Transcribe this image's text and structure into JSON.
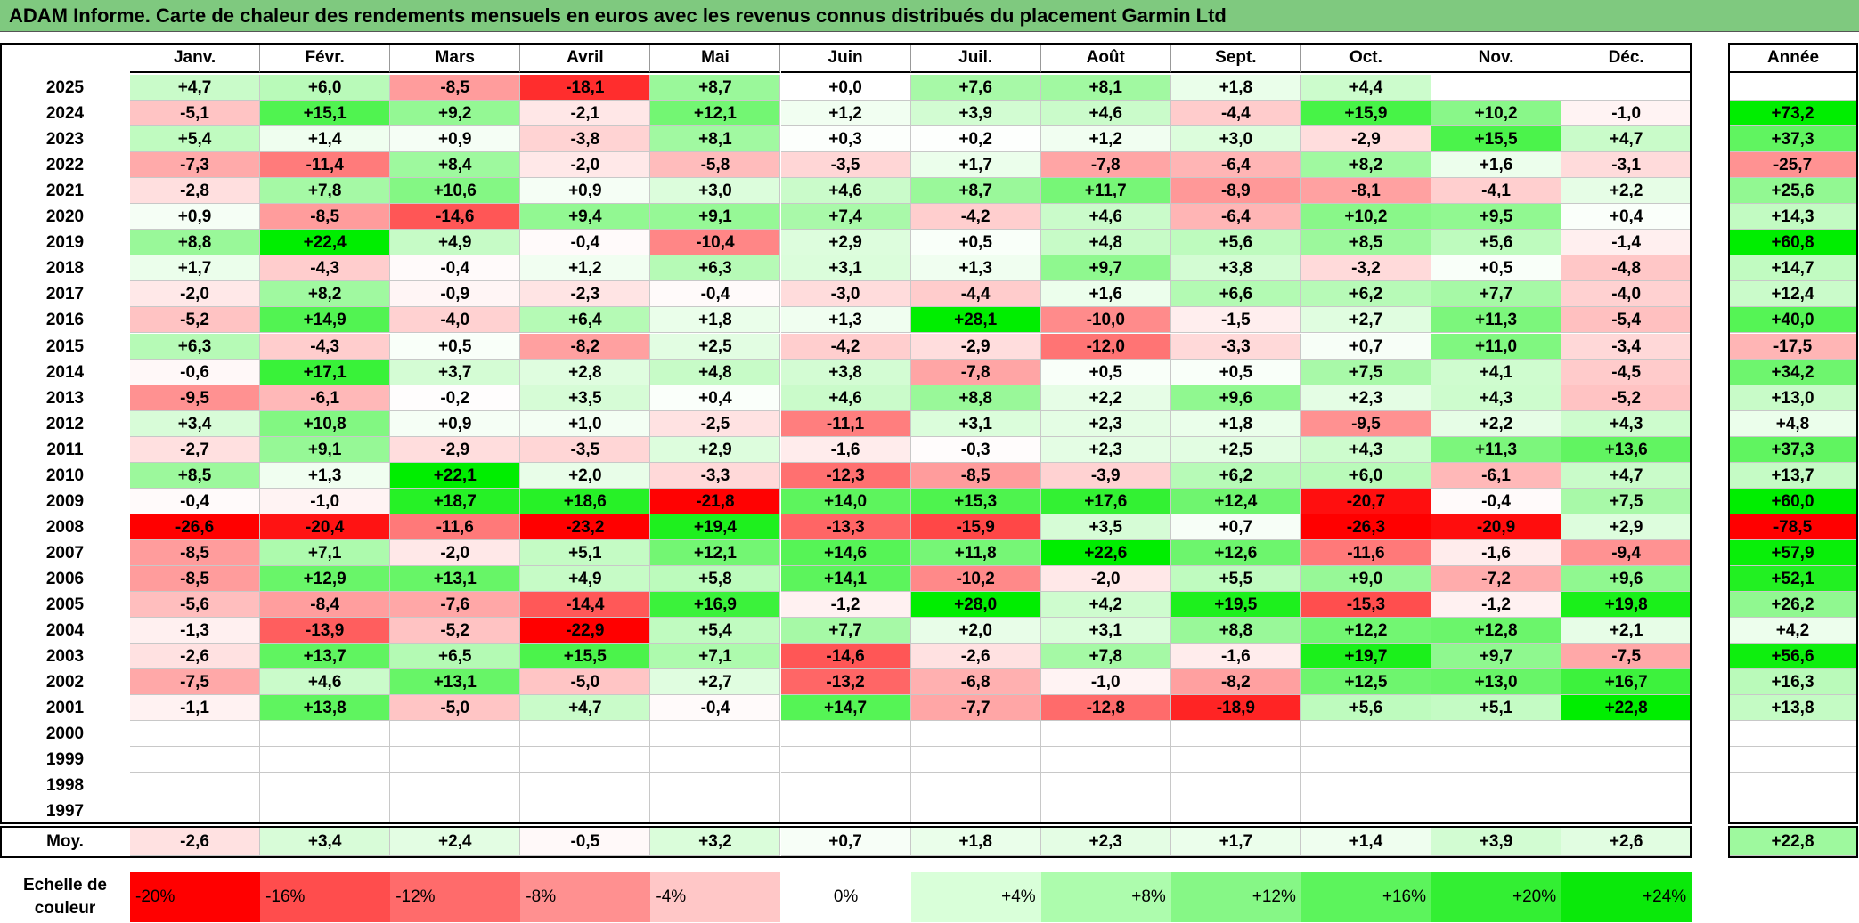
{
  "title": "ADAM Informe. Carte de chaleur des rendements mensuels en euros avec les revenus connus distribués du placement Garmin Ltd",
  "headers": [
    "Janv.",
    "Févr.",
    "Mars",
    "Avril",
    "Mai",
    "Juin",
    "Juil.",
    "Août",
    "Sept.",
    "Oct.",
    "Nov.",
    "Déc."
  ],
  "annee_header": "Année",
  "moy_label": "Moy.",
  "scale_label": "Echelle de couleur",
  "scale": [
    "-20%",
    "-16%",
    "-12%",
    "-8%",
    "-4%",
    "0%",
    "+4%",
    "+8%",
    "+12%",
    "+16%",
    "+20%",
    "+24%"
  ],
  "chart_data": {
    "type": "heatmap",
    "title": "ADAM Informe. Carte de chaleur des rendements mensuels en euros avec les revenus connus distribués du placement Garmin Ltd",
    "x": [
      "Janv.",
      "Févr.",
      "Mars",
      "Avril",
      "Mai",
      "Juin",
      "Juil.",
      "Août",
      "Sept.",
      "Oct.",
      "Nov.",
      "Déc."
    ],
    "rows": [
      {
        "year": "2025",
        "values": [
          "+4,7",
          "+6,0",
          "-8,5",
          "-18,1",
          "+8,7",
          "+0,0",
          "+7,6",
          "+8,1",
          "+1,8",
          "+4,4",
          "",
          ""
        ],
        "annee": ""
      },
      {
        "year": "2024",
        "values": [
          "-5,1",
          "+15,1",
          "+9,2",
          "-2,1",
          "+12,1",
          "+1,2",
          "+3,9",
          "+4,6",
          "-4,4",
          "+15,9",
          "+10,2",
          "-1,0"
        ],
        "annee": "+73,2"
      },
      {
        "year": "2023",
        "values": [
          "+5,4",
          "+1,4",
          "+0,9",
          "-3,8",
          "+8,1",
          "+0,3",
          "+0,2",
          "+1,2",
          "+3,0",
          "-2,9",
          "+15,5",
          "+4,7"
        ],
        "annee": "+37,3"
      },
      {
        "year": "2022",
        "values": [
          "-7,3",
          "-11,4",
          "+8,4",
          "-2,0",
          "-5,8",
          "-3,5",
          "+1,7",
          "-7,8",
          "-6,4",
          "+8,2",
          "+1,6",
          "-3,1"
        ],
        "annee": "-25,7"
      },
      {
        "year": "2021",
        "values": [
          "-2,8",
          "+7,8",
          "+10,6",
          "+0,9",
          "+3,0",
          "+4,6",
          "+8,7",
          "+11,7",
          "-8,9",
          "-8,1",
          "-4,1",
          "+2,2"
        ],
        "annee": "+25,6"
      },
      {
        "year": "2020",
        "values": [
          "+0,9",
          "-8,5",
          "-14,6",
          "+9,4",
          "+9,1",
          "+7,4",
          "-4,2",
          "+4,6",
          "-6,4",
          "+10,2",
          "+9,5",
          "+0,4"
        ],
        "annee": "+14,3"
      },
      {
        "year": "2019",
        "values": [
          "+8,8",
          "+22,4",
          "+4,9",
          "-0,4",
          "-10,4",
          "+2,9",
          "+0,5",
          "+4,8",
          "+5,6",
          "+8,5",
          "+5,6",
          "-1,4"
        ],
        "annee": "+60,8"
      },
      {
        "year": "2018",
        "values": [
          "+1,7",
          "-4,3",
          "-0,4",
          "+1,2",
          "+6,3",
          "+3,1",
          "+1,3",
          "+9,7",
          "+3,8",
          "-3,2",
          "+0,5",
          "-4,8"
        ],
        "annee": "+14,7"
      },
      {
        "year": "2017",
        "values": [
          "-2,0",
          "+8,2",
          "-0,9",
          "-2,3",
          "-0,4",
          "-3,0",
          "-4,4",
          "+1,6",
          "+6,6",
          "+6,2",
          "+7,7",
          "-4,0"
        ],
        "annee": "+12,4"
      },
      {
        "year": "2016",
        "values": [
          "-5,2",
          "+14,9",
          "-4,0",
          "+6,4",
          "+1,8",
          "+1,3",
          "+28,1",
          "-10,0",
          "-1,5",
          "+2,7",
          "+11,3",
          "-5,4"
        ],
        "annee": "+40,0"
      },
      {
        "year": "2015",
        "values": [
          "+6,3",
          "-4,3",
          "+0,5",
          "-8,2",
          "+2,5",
          "-4,2",
          "-2,9",
          "-12,0",
          "-3,3",
          "+0,7",
          "+11,0",
          "-3,4"
        ],
        "annee": "-17,5"
      },
      {
        "year": "2014",
        "values": [
          "-0,6",
          "+17,1",
          "+3,7",
          "+2,8",
          "+4,8",
          "+3,8",
          "-7,8",
          "+0,5",
          "+0,5",
          "+7,5",
          "+4,1",
          "-4,5"
        ],
        "annee": "+34,2"
      },
      {
        "year": "2013",
        "values": [
          "-9,5",
          "-6,1",
          "-0,2",
          "+3,5",
          "+0,4",
          "+4,6",
          "+8,8",
          "+2,2",
          "+9,6",
          "+2,3",
          "+4,3",
          "-5,2"
        ],
        "annee": "+13,0"
      },
      {
        "year": "2012",
        "values": [
          "+3,4",
          "+10,8",
          "+0,9",
          "+1,0",
          "-2,5",
          "-11,1",
          "+3,1",
          "+2,3",
          "+1,8",
          "-9,5",
          "+2,2",
          "+4,3"
        ],
        "annee": "+4,8"
      },
      {
        "year": "2011",
        "values": [
          "-2,7",
          "+9,1",
          "-2,9",
          "-3,5",
          "+2,9",
          "-1,6",
          "-0,3",
          "+2,3",
          "+2,5",
          "+4,3",
          "+11,3",
          "+13,6"
        ],
        "annee": "+37,3"
      },
      {
        "year": "2010",
        "values": [
          "+8,5",
          "+1,3",
          "+22,1",
          "+2,0",
          "-3,3",
          "-12,3",
          "-8,5",
          "-3,9",
          "+6,2",
          "+6,0",
          "-6,1",
          "+4,7"
        ],
        "annee": "+13,7"
      },
      {
        "year": "2009",
        "values": [
          "-0,4",
          "-1,0",
          "+18,7",
          "+18,6",
          "-21,8",
          "+14,0",
          "+15,3",
          "+17,6",
          "+12,4",
          "-20,7",
          "-0,4",
          "+7,5"
        ],
        "annee": "+60,0"
      },
      {
        "year": "2008",
        "values": [
          "-26,6",
          "-20,4",
          "-11,6",
          "-23,2",
          "+19,4",
          "-13,3",
          "-15,9",
          "+3,5",
          "+0,7",
          "-26,3",
          "-20,9",
          "+2,9"
        ],
        "annee": "-78,5"
      },
      {
        "year": "2007",
        "values": [
          "-8,5",
          "+7,1",
          "-2,0",
          "+5,1",
          "+12,1",
          "+14,6",
          "+11,8",
          "+22,6",
          "+12,6",
          "-11,6",
          "-1,6",
          "-9,4"
        ],
        "annee": "+57,9"
      },
      {
        "year": "2006",
        "values": [
          "-8,5",
          "+12,9",
          "+13,1",
          "+4,9",
          "+5,8",
          "+14,1",
          "-10,2",
          "-2,0",
          "+5,5",
          "+9,0",
          "-7,2",
          "+9,6"
        ],
        "annee": "+52,1"
      },
      {
        "year": "2005",
        "values": [
          "-5,6",
          "-8,4",
          "-7,6",
          "-14,4",
          "+16,9",
          "-1,2",
          "+28,0",
          "+4,2",
          "+19,5",
          "-15,3",
          "-1,2",
          "+19,8"
        ],
        "annee": "+26,2"
      },
      {
        "year": "2004",
        "values": [
          "-1,3",
          "-13,9",
          "-5,2",
          "-22,9",
          "+5,4",
          "+7,7",
          "+2,0",
          "+3,1",
          "+8,8",
          "+12,2",
          "+12,8",
          "+2,1"
        ],
        "annee": "+4,2"
      },
      {
        "year": "2003",
        "values": [
          "-2,6",
          "+13,7",
          "+6,5",
          "+15,5",
          "+7,1",
          "-14,6",
          "-2,6",
          "+7,8",
          "-1,6",
          "+19,7",
          "+9,7",
          "-7,5"
        ],
        "annee": "+56,6"
      },
      {
        "year": "2002",
        "values": [
          "-7,5",
          "+4,6",
          "+13,1",
          "-5,0",
          "+2,7",
          "-13,2",
          "-6,8",
          "-1,0",
          "-8,2",
          "+12,5",
          "+13,0",
          "+16,7"
        ],
        "annee": "+16,3"
      },
      {
        "year": "2001",
        "values": [
          "-1,1",
          "+13,8",
          "-5,0",
          "+4,7",
          "-0,4",
          "+14,7",
          "-7,7",
          "-12,8",
          "-18,9",
          "+5,6",
          "+5,1",
          "+22,8"
        ],
        "annee": "+13,8"
      },
      {
        "year": "2000",
        "values": [
          "",
          "",
          "",
          "",
          "",
          "",
          "",
          "",
          "",
          "",
          "",
          ""
        ],
        "annee": ""
      },
      {
        "year": "1999",
        "values": [
          "",
          "",
          "",
          "",
          "",
          "",
          "",
          "",
          "",
          "",
          "",
          ""
        ],
        "annee": ""
      },
      {
        "year": "1998",
        "values": [
          "",
          "",
          "",
          "",
          "",
          "",
          "",
          "",
          "",
          "",
          "",
          ""
        ],
        "annee": ""
      },
      {
        "year": "1997",
        "values": [
          "",
          "",
          "",
          "",
          "",
          "",
          "",
          "",
          "",
          "",
          "",
          ""
        ],
        "annee": ""
      }
    ],
    "moy": [
      "-2,6",
      "+3,4",
      "+2,4",
      "-0,5",
      "+3,2",
      "+0,7",
      "+1,8",
      "+2,3",
      "+1,7",
      "+1,4",
      "+3,9",
      "+2,6"
    ],
    "moy_annee": "+22,8",
    "colors": {
      "neg_max": "#ff0000",
      "pos_max": "#00ee00",
      "neutral": "#ffffff"
    }
  }
}
